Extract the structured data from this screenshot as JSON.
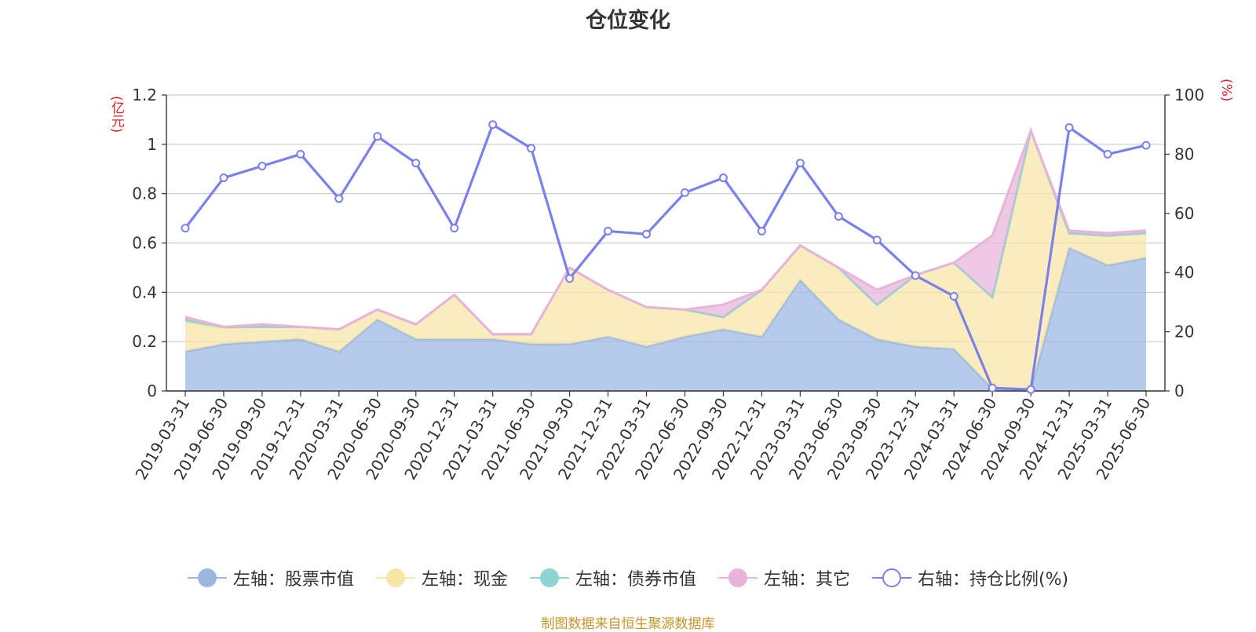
{
  "chart_data": {
    "type": "area",
    "title": "仓位变化",
    "left_axis_unit": "(亿元)",
    "right_axis_unit": "(%)",
    "left_ylim": [
      0,
      1.2
    ],
    "left_ticks": [
      "0",
      "0.2",
      "0.4",
      "0.6",
      "0.8",
      "1",
      "1.2"
    ],
    "right_ylim": [
      0,
      100
    ],
    "right_ticks": [
      "0",
      "20",
      "40",
      "60",
      "80",
      "100"
    ],
    "grid": true,
    "legend_position": "bottom",
    "categories": [
      "2019-03-31",
      "2019-06-30",
      "2019-09-30",
      "2019-12-31",
      "2020-03-31",
      "2020-06-30",
      "2020-09-30",
      "2020-12-31",
      "2021-03-31",
      "2021-06-30",
      "2021-09-30",
      "2021-12-31",
      "2022-03-31",
      "2022-06-30",
      "2022-09-30",
      "2022-12-31",
      "2023-03-31",
      "2023-06-30",
      "2023-09-30",
      "2023-12-31",
      "2024-03-31",
      "2024-06-30",
      "2024-09-30",
      "2024-12-31",
      "2025-03-31",
      "2025-06-30"
    ],
    "series": [
      {
        "name": "左轴：股票市值",
        "axis": "left",
        "stacked": true,
        "color": "#9ab7e2",
        "values": [
          0.16,
          0.19,
          0.2,
          0.21,
          0.16,
          0.29,
          0.21,
          0.21,
          0.21,
          0.19,
          0.19,
          0.22,
          0.18,
          0.22,
          0.25,
          0.22,
          0.45,
          0.29,
          0.21,
          0.18,
          0.17,
          0.01,
          0.005,
          0.58,
          0.51,
          0.54
        ]
      },
      {
        "name": "左轴：现金",
        "axis": "left",
        "stacked": true,
        "color": "#f7e6a6",
        "values": [
          0.12,
          0.065,
          0.06,
          0.05,
          0.09,
          0.04,
          0.06,
          0.18,
          0.02,
          0.04,
          0.31,
          0.19,
          0.16,
          0.11,
          0.05,
          0.19,
          0.14,
          0.21,
          0.14,
          0.29,
          0.35,
          0.37,
          1.05,
          0.06,
          0.12,
          0.1
        ]
      },
      {
        "name": "左轴：债券市值",
        "axis": "left",
        "stacked": true,
        "color": "#8fd3d4",
        "values": [
          0.01,
          0.005,
          0,
          0,
          0,
          0,
          0,
          0,
          0,
          0,
          0,
          0,
          0,
          0,
          0,
          0,
          0,
          0,
          0,
          0,
          0,
          0,
          0,
          0,
          0,
          0
        ]
      },
      {
        "name": "左轴：其它",
        "axis": "left",
        "stacked": true,
        "color": "#e8b4d9",
        "values": [
          0.01,
          0,
          0.01,
          0,
          0,
          0,
          0,
          0,
          0,
          0,
          0,
          0,
          0,
          0,
          0.05,
          0,
          0,
          0,
          0.06,
          0,
          0,
          0.25,
          0,
          0.01,
          0.01,
          0.01
        ]
      },
      {
        "name": "右轴：持仓比例(%)",
        "axis": "right",
        "type": "line",
        "color": "#7b80ec",
        "values": [
          55,
          72,
          76,
          80,
          65,
          86,
          77,
          55,
          90,
          82,
          38,
          54,
          53,
          67,
          72,
          54,
          77,
          59,
          51,
          39,
          32,
          1,
          0.5,
          89,
          80,
          83
        ]
      }
    ],
    "source_note": "制图数据来自恒生聚源数据库"
  }
}
